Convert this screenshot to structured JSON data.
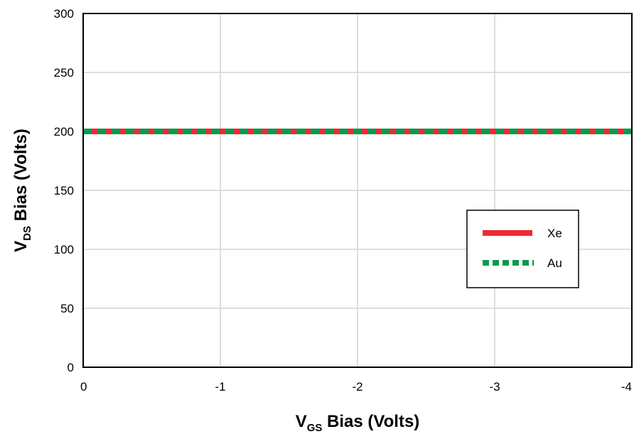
{
  "chart_data": {
    "type": "line",
    "xlabel": {
      "main": "V",
      "sub": "GS",
      "rest": " Bias (Volts)"
    },
    "ylabel": {
      "main": "V",
      "sub": "DS",
      "rest": " Bias (Volts)"
    },
    "xlim": [
      0,
      -4
    ],
    "ylim": [
      0,
      300
    ],
    "x_ticks": [
      0,
      -1,
      -2,
      -3,
      -4
    ],
    "y_ticks": [
      0,
      50,
      100,
      150,
      200,
      250,
      300
    ],
    "grid": true,
    "legend_position": "right",
    "series": [
      {
        "name": "Xe",
        "color": "#ee2a32",
        "style": "solid",
        "x": [
          0,
          -1,
          -2,
          -3,
          -4
        ],
        "y": [
          200,
          200,
          200,
          200,
          200
        ]
      },
      {
        "name": "Au",
        "color": "#0b9a4a",
        "style": "dashed",
        "x": [
          0,
          -1,
          -2,
          -3,
          -4
        ],
        "y": [
          200,
          200,
          200,
          200,
          200
        ]
      }
    ]
  }
}
